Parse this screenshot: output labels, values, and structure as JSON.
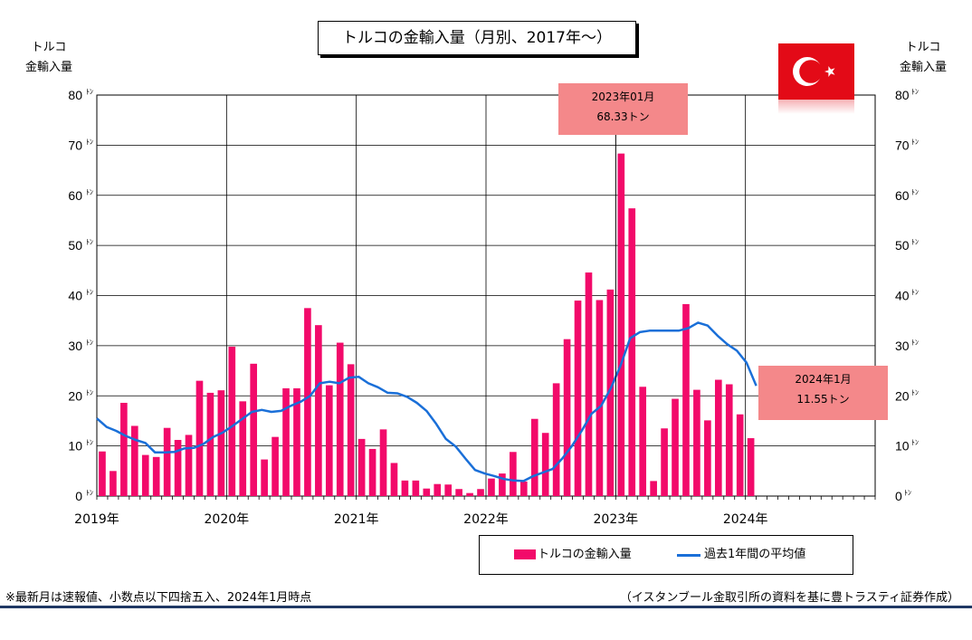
{
  "header": {
    "title": "トルコの金輸入量（月別、2017年～）",
    "left_axis_title": [
      "トルコ",
      "金輸入量"
    ],
    "right_axis_title": [
      "トルコ",
      "金輸入量"
    ]
  },
  "flag": {
    "icon": "turkey-flag-icon",
    "red": "#e30a17",
    "white": "#ffffff"
  },
  "callouts": {
    "peak": {
      "line1": "2023年01月",
      "line2": "68.33トン"
    },
    "latest": {
      "line1": "2024年1月",
      "line2": "11.55トン"
    }
  },
  "legend": {
    "bar_label": "トルコの金輸入量",
    "line_label": "過去1年間の平均値"
  },
  "footer": {
    "note": "※最新月は速報値、小数点以下四捨五入、2024年1月時点",
    "source": "（イスタンブール金取引所の資料を基に豊トラスティ証券作成）"
  },
  "chart_data": {
    "type": "bar",
    "title": "トルコの金輸入量（月別、2017年～）",
    "ylabel": "トルコ 金輸入量",
    "ylim": [
      0,
      80
    ],
    "y_ticks": [
      0,
      10,
      20,
      30,
      40,
      50,
      60,
      70,
      80
    ],
    "y_tick_unit": "トン",
    "x_ticks": [
      "2019年",
      "2020年",
      "2021年",
      "2022年",
      "2023年",
      "2024年"
    ],
    "x_range_months": 72,
    "grid": true,
    "legend_position": "bottom-right",
    "colors": {
      "bars": "#f20a6a",
      "line": "#1a6fd8",
      "callout": "#f4888a"
    },
    "series": [
      {
        "name": "トルコの金輸入量",
        "type": "bar",
        "values": [
          8.9,
          5.0,
          18.6,
          14.0,
          8.2,
          7.8,
          13.6,
          11.2,
          12.2,
          23.0,
          20.6,
          21.1,
          29.8,
          18.9,
          26.4,
          7.3,
          11.8,
          21.5,
          21.5,
          37.5,
          34.1,
          22.1,
          30.6,
          26.3,
          11.4,
          9.4,
          13.3,
          6.6,
          3.1,
          3.1,
          1.5,
          2.4,
          2.3,
          1.4,
          0.6,
          1.4,
          3.5,
          4.5,
          8.8,
          2.9,
          15.4,
          12.6,
          22.5,
          31.3,
          39.0,
          44.6,
          39.1,
          41.2,
          68.33,
          57.4,
          21.8,
          3.0,
          13.5,
          19.4,
          38.3,
          21.2,
          15.1,
          23.2,
          22.3,
          16.3,
          11.55
        ]
      },
      {
        "name": "過去1年間の平均値",
        "type": "line",
        "values": [
          15.5,
          13.8,
          13.0,
          12.0,
          11.2,
          10.6,
          8.7,
          8.7,
          8.8,
          9.5,
          9.6,
          10.4,
          11.8,
          12.7,
          14.0,
          15.4,
          16.8,
          17.2,
          16.8,
          17.0,
          18.0,
          18.8,
          20.0,
          22.5,
          22.8,
          22.5,
          23.6,
          23.8,
          22.5,
          21.7,
          20.6,
          20.5,
          19.8,
          18.6,
          17.0,
          14.4,
          11.4,
          9.9,
          7.5,
          5.2,
          4.5,
          4.0,
          3.4,
          3.1,
          3.0,
          4.0,
          4.7,
          5.4,
          7.5,
          10.0,
          13.0,
          16.4,
          18.0,
          21.5,
          26.0,
          31.5,
          32.7,
          33.0,
          33.0,
          33.0,
          33.0,
          33.5,
          34.6,
          34.0,
          32.0,
          30.3,
          29.0,
          26.6,
          22.0
        ]
      }
    ]
  }
}
